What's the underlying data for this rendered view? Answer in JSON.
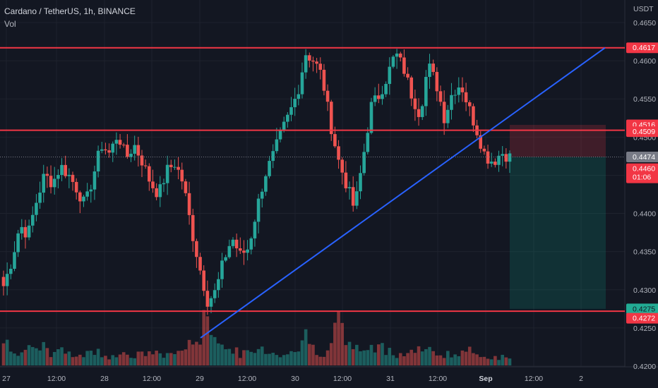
{
  "header": {
    "symbol_title": "Cardano / TetherUS, 1h, BINANCE",
    "volume_label": "Vol"
  },
  "price_axis": {
    "currency": "USDT",
    "ticks": [
      "0.4650",
      "0.4600",
      "0.4550",
      "0.4500",
      "0.4450",
      "0.4400",
      "0.4350",
      "0.4300",
      "0.4250",
      "0.4200"
    ]
  },
  "time_axis": {
    "ticks": [
      "27",
      "12:00",
      "28",
      "12:00",
      "29",
      "12:00",
      "30",
      "12:00",
      "31",
      "12:00",
      "Sep",
      "12:00",
      "2"
    ]
  },
  "price_labels": {
    "top_resistance": "0.4617",
    "stop_level": "0.4516",
    "resistance": "0.4509",
    "current_price": "0.4474",
    "last_price": "0.4460",
    "countdown": "01:06",
    "target_level": "0.4275",
    "support": "0.4272"
  },
  "colors": {
    "background": "#131722",
    "up": "#26a69a",
    "down": "#ef5350",
    "level_line": "#f23645",
    "trendline": "#2962ff",
    "grid": "#1e222d"
  },
  "chart_data": {
    "type": "candlestick",
    "title": "Cardano / TetherUS, 1h, BINANCE",
    "y_unit": "USDT",
    "ylim": [
      0.4195,
      0.4665
    ],
    "x_ticks": [
      "27",
      "12:00",
      "28",
      "12:00",
      "29",
      "12:00",
      "30",
      "12:00",
      "31",
      "12:00",
      "Sep",
      "12:00",
      "2"
    ],
    "horizontal_levels": [
      0.4617,
      0.4509,
      0.4272
    ],
    "trendline": {
      "from": [
        0.4237
      ],
      "to": [
        0.4617
      ]
    },
    "position": {
      "entry": 0.4474,
      "stop": 0.4516,
      "target": 0.4275
    },
    "price_path": [
      0.4305,
      0.4338,
      0.4385,
      0.4372,
      0.4415,
      0.445,
      0.444,
      0.4462,
      0.445,
      0.4432,
      0.441,
      0.445,
      0.449,
      0.4478,
      0.4505,
      0.4472,
      0.449,
      0.4468,
      0.444,
      0.4425,
      0.4456,
      0.4466,
      0.444,
      0.438,
      0.433,
      0.4285,
      0.4298,
      0.434,
      0.4368,
      0.4345,
      0.4355,
      0.4405,
      0.445,
      0.4475,
      0.4505,
      0.453,
      0.4558,
      0.461,
      0.46,
      0.458,
      0.452,
      0.447,
      0.4438,
      0.4405,
      0.447,
      0.454,
      0.4555,
      0.458,
      0.461,
      0.459,
      0.4555,
      0.453,
      0.4595,
      0.457,
      0.4525,
      0.456,
      0.457,
      0.4538,
      0.4508,
      0.4475,
      0.4468,
      0.448,
      0.4474
    ],
    "volume_level": [
      0.45,
      0.36,
      0.25,
      0.28,
      0.22,
      0.32,
      0.2,
      0.25,
      0.22,
      0.18,
      0.2,
      0.26,
      0.2,
      0.17,
      0.22,
      0.19,
      0.16,
      0.2,
      0.24,
      0.18,
      0.2,
      0.22,
      0.3,
      0.35,
      0.55,
      0.85,
      0.6,
      0.3,
      0.25,
      0.22,
      0.2,
      0.26,
      0.3,
      0.22,
      0.2,
      0.24,
      0.28,
      0.5,
      0.3,
      0.22,
      0.35,
      0.8,
      0.4,
      0.3,
      0.28,
      0.26,
      0.32,
      0.3,
      0.22,
      0.2,
      0.24,
      0.3,
      0.26,
      0.2,
      0.22,
      0.18,
      0.2,
      0.24,
      0.22,
      0.18,
      0.16,
      0.14,
      0.12
    ]
  }
}
